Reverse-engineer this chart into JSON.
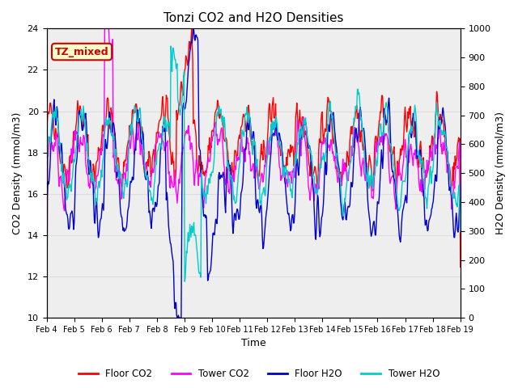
{
  "title": "Tonzi CO2 and H2O Densities",
  "xlabel": "Time",
  "ylabel_left": "CO2 Density (mmol/m3)",
  "ylabel_right": "H2O Density (mmol/m3)",
  "ylim_left": [
    10,
    24
  ],
  "ylim_right": [
    0,
    1000
  ],
  "yticks_left": [
    10,
    12,
    14,
    16,
    18,
    20,
    22,
    24
  ],
  "yticks_right": [
    0,
    100,
    200,
    300,
    400,
    500,
    600,
    700,
    800,
    900,
    1000
  ],
  "xtick_labels": [
    "Feb 4",
    "Feb 5",
    "Feb 6",
    "Feb 7",
    "Feb 8",
    "Feb 9",
    "Feb 10",
    "Feb 11",
    "Feb 12",
    "Feb 13",
    "Feb 14",
    "Feb 15",
    "Feb 16",
    "Feb 17",
    "Feb 18",
    "Feb 19"
  ],
  "legend_labels": [
    "Floor CO2",
    "Tower CO2",
    "Floor H2O",
    "Tower H2O"
  ],
  "legend_colors": [
    "#ff0000",
    "#ff00ff",
    "#0000cc",
    "#00cccc"
  ],
  "annotation_text": "TZ_mixed",
  "annotation_color": "#cc0000",
  "annotation_bg": "#ffffcc",
  "grid_color": "#dddddd",
  "bg_color": "#eeeeee",
  "floor_co2_color": "#ff0000",
  "tower_co2_color": "#ff00ff",
  "floor_h2o_color": "#0000cc",
  "tower_h2o_color": "#00cccc",
  "line_width": 1.0,
  "n_days": 15,
  "seed": 42
}
